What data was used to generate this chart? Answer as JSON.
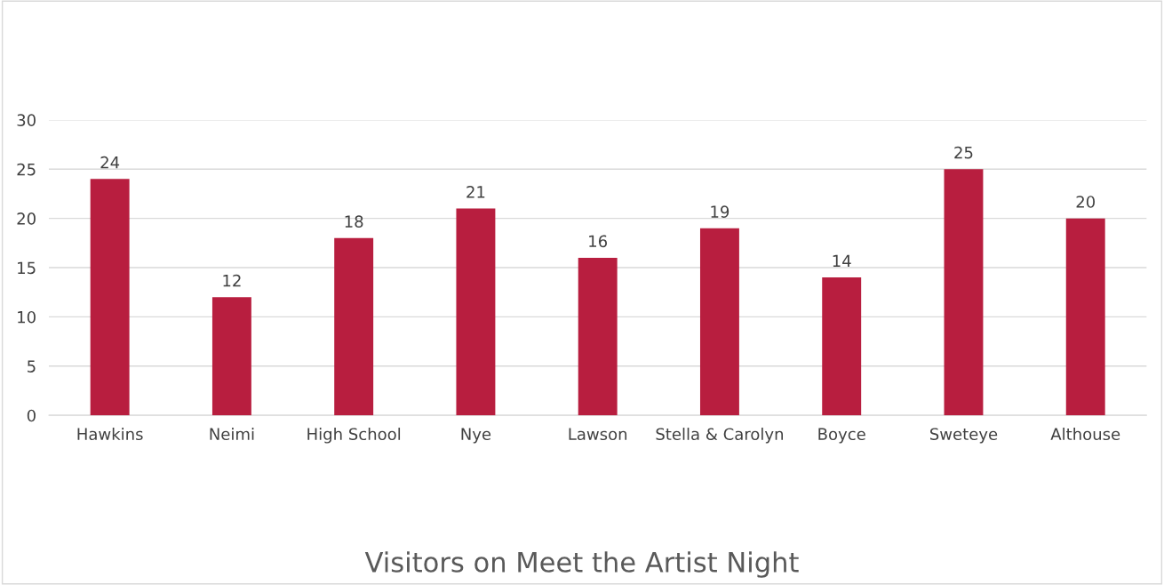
{
  "chart_data": {
    "type": "bar",
    "title": "Visitors on Meet the Artist Night",
    "categories": [
      "Hawkins",
      "Neimi",
      "High School",
      "Nye",
      "Lawson",
      "Stella & Carolyn",
      "Boyce",
      "Sweteye",
      "Althouse"
    ],
    "values": [
      24,
      12,
      18,
      21,
      16,
      19,
      14,
      25,
      20
    ],
    "color": "#b81e3f",
    "ylim": [
      0,
      30
    ],
    "yticks": [
      0,
      5,
      10,
      15,
      20,
      25,
      30
    ],
    "grid": "y",
    "data_labels": true
  }
}
